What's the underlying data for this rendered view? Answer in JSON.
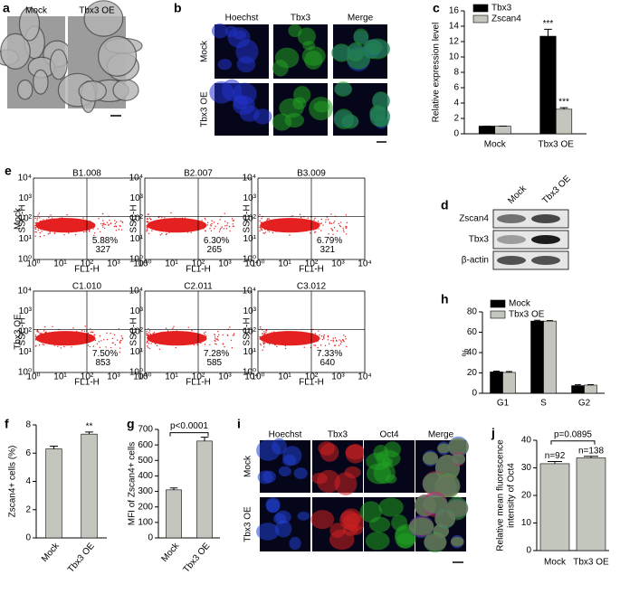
{
  "panel_letters": [
    "a",
    "b",
    "c",
    "d",
    "e",
    "f",
    "g",
    "h",
    "i",
    "j"
  ],
  "panel_a": {
    "labels": [
      "Mock",
      "Tbx3 OE"
    ]
  },
  "panel_b": {
    "columns": [
      "Hoechst",
      "Tbx3",
      "Merge"
    ],
    "rows": [
      "Mock",
      "Tbx3 OE"
    ]
  },
  "panel_d": {
    "columns": [
      "Mock",
      "Tbx3 OE"
    ],
    "rows": [
      "Zscan4",
      "Tbx3",
      "β-actin"
    ]
  },
  "panel_e": {
    "rows": [
      "Mock",
      "Tbx3 OE"
    ],
    "x_label": "FL1-H",
    "y_label": "SSC-H",
    "decades": [
      "10⁰",
      "10¹",
      "10²",
      "10³",
      "10⁴"
    ],
    "plots": [
      {
        "title": "B1.008",
        "percent": "5.88%",
        "count": 327
      },
      {
        "title": "B2.007",
        "percent": "6.30%",
        "count": 265
      },
      {
        "title": "B3.009",
        "percent": "6.79%",
        "count": 321
      },
      {
        "title": "C1.010",
        "percent": "7.50%",
        "count": 853
      },
      {
        "title": "C2.011",
        "percent": "7.28%",
        "count": 585
      },
      {
        "title": "C3.012",
        "percent": "7.33%",
        "count": 640
      }
    ]
  },
  "panel_i": {
    "columns": [
      "Hoechst",
      "Tbx3",
      "Oct4",
      "Merge"
    ],
    "rows": [
      "Mock",
      "Tbx3 OE"
    ]
  },
  "chart_data": [
    {
      "type": "bar",
      "ylabel": "Relative expression level",
      "categories": [
        "Mock",
        "Tbx3 OE"
      ],
      "ylim": [
        0,
        16
      ],
      "yticks": [
        0,
        2,
        4,
        6,
        8,
        10,
        12,
        14,
        16
      ],
      "series": [
        {
          "name": "Tbx3",
          "color": "#000000",
          "values": [
            1,
            12.7
          ],
          "errors": [
            0,
            0.9
          ],
          "annotations": [
            null,
            "***"
          ]
        },
        {
          "name": "Zscan4",
          "color": "#c3c6bd",
          "values": [
            1,
            3.2
          ],
          "errors": [
            0,
            0.2
          ],
          "annotations": [
            null,
            "***"
          ]
        }
      ]
    },
    {
      "type": "bar",
      "ylabel": "%",
      "categories": [
        "G1",
        "S",
        "G2"
      ],
      "ylim": [
        0,
        80
      ],
      "yticks": [
        0,
        20,
        40,
        60,
        80
      ],
      "series": [
        {
          "name": "Mock",
          "color": "#000000",
          "values": [
            21,
            71,
            7.5
          ],
          "errors": [
            0.8,
            0.8,
            0.8
          ]
        },
        {
          "name": "Tbx3 OE",
          "color": "#c3c6bd",
          "values": [
            20.5,
            71,
            8
          ],
          "errors": [
            0.8,
            0.5,
            0.5
          ]
        }
      ]
    },
    {
      "type": "bar",
      "ylabel": "Zscan4+ cells (%)",
      "categories": [
        "Mock",
        "Tbx3 OE"
      ],
      "ylim": [
        0,
        8
      ],
      "yticks": [
        0,
        2,
        4,
        6,
        8
      ],
      "color": "#c3c6bd",
      "values": [
        6.3,
        7.35
      ],
      "errors": [
        0.2,
        0.15
      ],
      "annotations": [
        null,
        "**"
      ]
    },
    {
      "type": "bar",
      "ylabel": "MFI of Zscan4+ cells",
      "categories": [
        "Mock",
        "Tbx3 OE"
      ],
      "ylim": [
        0,
        700
      ],
      "yticks": [
        0,
        100,
        200,
        300,
        400,
        500,
        600,
        700
      ],
      "color": "#c3c6bd",
      "values": [
        310,
        625
      ],
      "errors": [
        12,
        25
      ],
      "bracket_label": "p<0.0001"
    },
    {
      "type": "bar",
      "ylabel": [
        "Relative mean fluorescence",
        "intensity of Oct4"
      ],
      "categories": [
        "Mock",
        "Tbx3 OE"
      ],
      "ylim": [
        0,
        40
      ],
      "yticks": [
        0,
        10,
        20,
        30,
        40
      ],
      "color": "#c3c6bd",
      "values": [
        31.5,
        33.6
      ],
      "errors": [
        0.8,
        0.6
      ],
      "annotations": [
        "n=92",
        "n=138"
      ],
      "bracket_label": "p=0.0895"
    }
  ]
}
